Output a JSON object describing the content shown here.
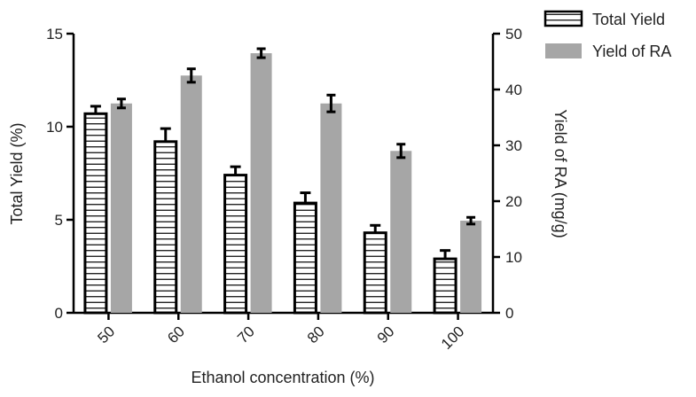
{
  "chart_data": {
    "type": "bar",
    "title": "",
    "xlabel": "Ethanol concentration (%)",
    "ylabel_left": "Total Yield (%)",
    "ylabel_right": "Yield of RA (mg/g)",
    "categories": [
      "50",
      "60",
      "70",
      "80",
      "90",
      "100"
    ],
    "ylim_left": [
      0,
      15
    ],
    "ylim_right": [
      0,
      50
    ],
    "yticks_left": [
      "0",
      "5",
      "10",
      "15"
    ],
    "yticks_right": [
      "0",
      "10",
      "20",
      "30",
      "40",
      "50"
    ],
    "grid": false,
    "legend_position": "top-right",
    "series": [
      {
        "name": "Total Yield",
        "axis": "left",
        "style": "horizontal-hatch",
        "color": "#000000",
        "values": [
          10.7,
          9.2,
          7.4,
          5.9,
          4.3,
          2.9
        ],
        "errors": [
          0.4,
          0.7,
          0.45,
          0.55,
          0.4,
          0.45
        ]
      },
      {
        "name": "Yield of RA",
        "axis": "right",
        "style": "solid",
        "color": "#a6a6a6",
        "values": [
          37.5,
          42.5,
          46.5,
          37.5,
          29.0,
          16.5
        ],
        "errors": [
          0.8,
          1.2,
          0.8,
          1.5,
          1.2,
          0.6
        ]
      }
    ]
  }
}
